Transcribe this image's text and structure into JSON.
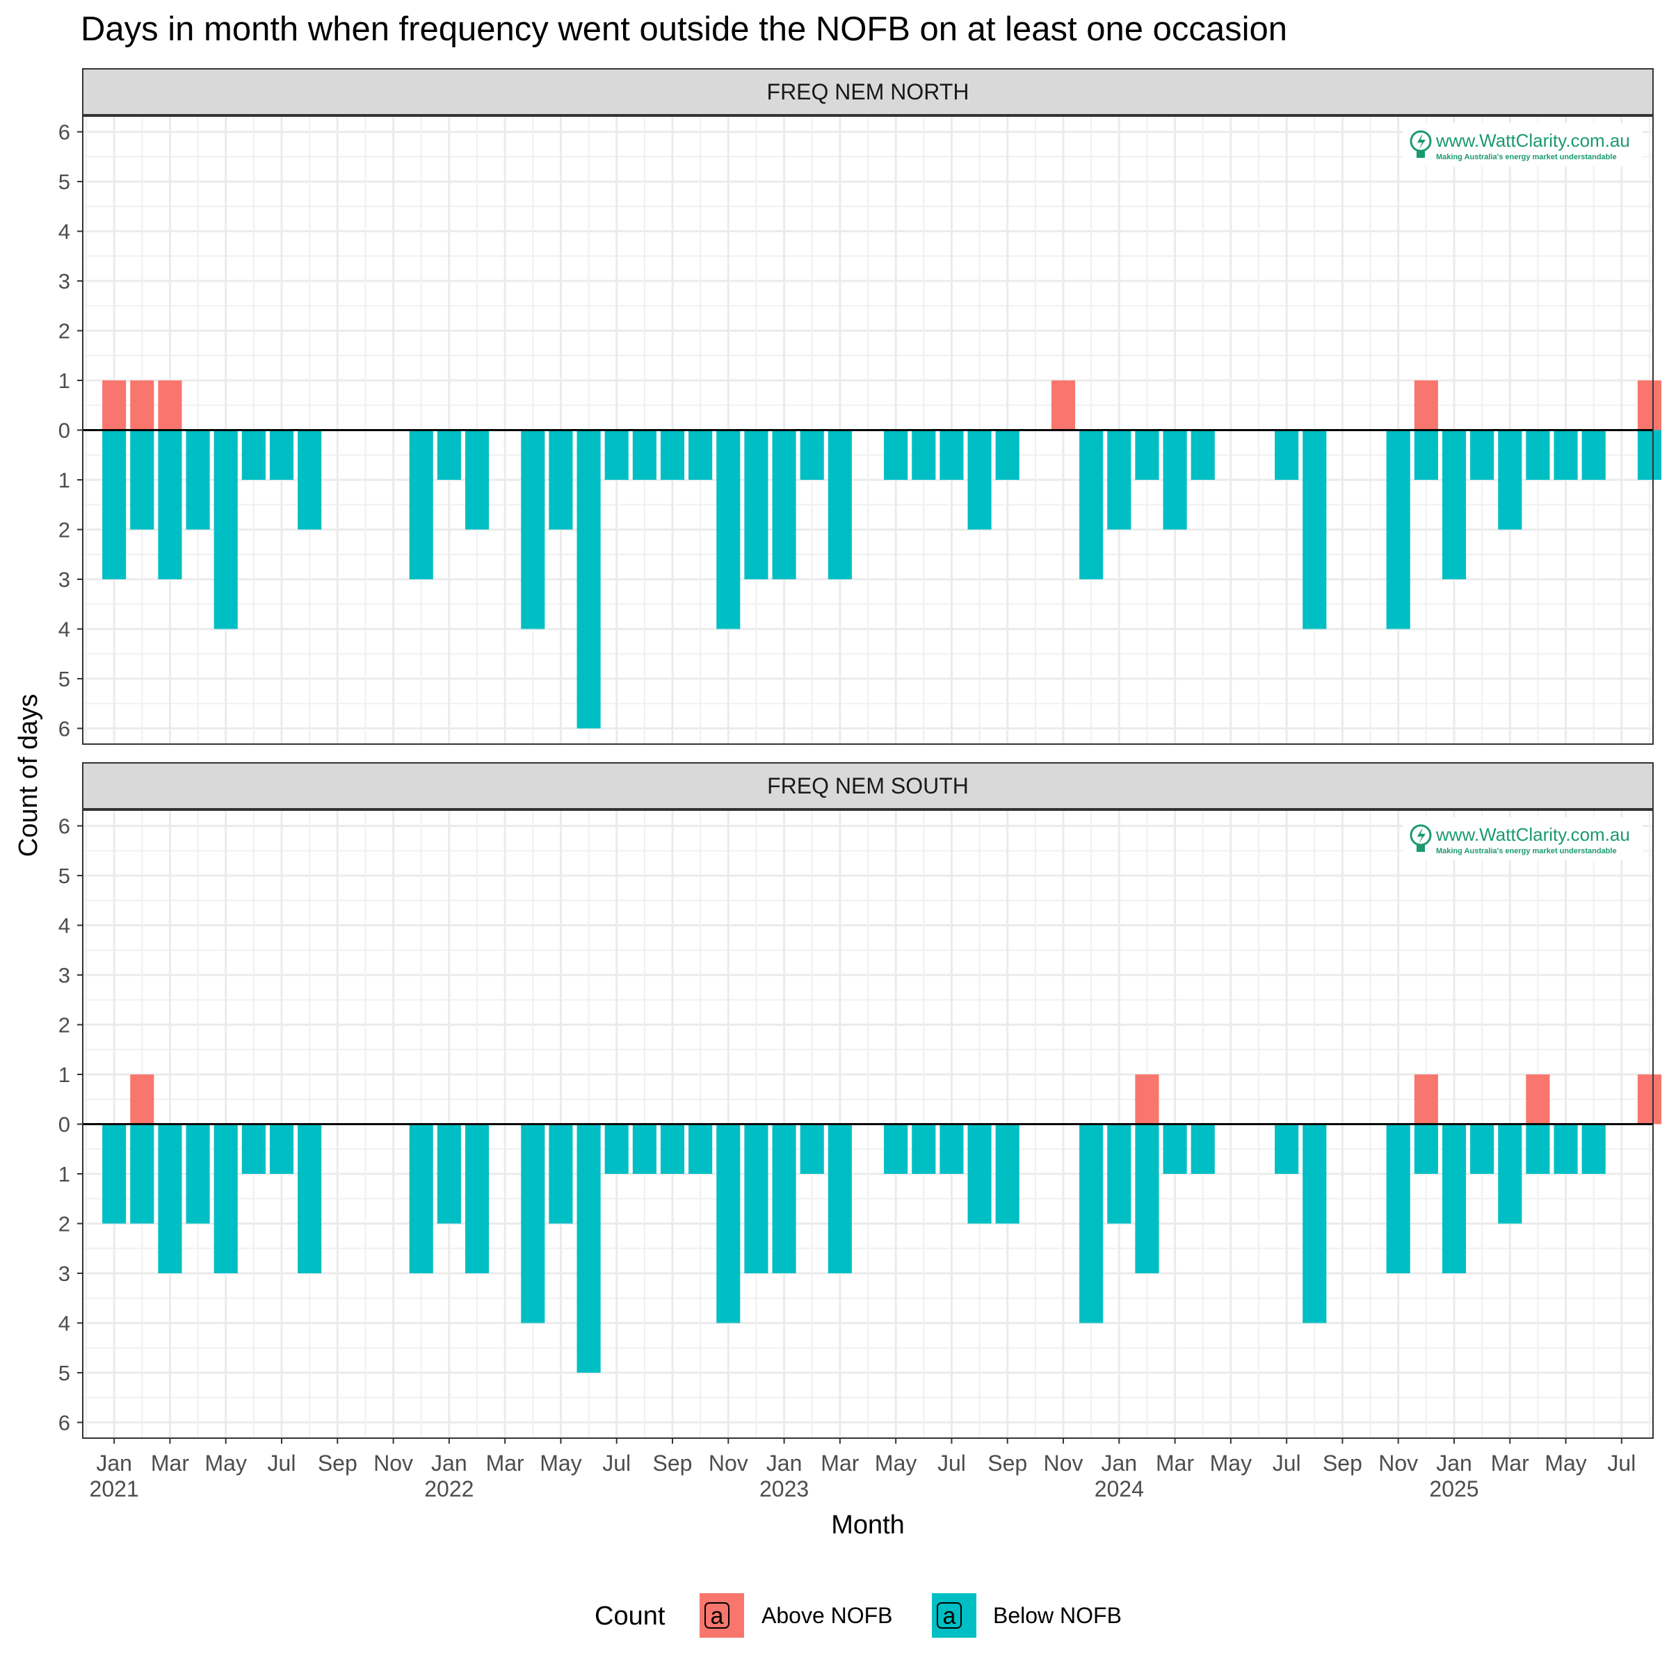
{
  "chart_data": {
    "type": "bar",
    "title": "Days in month when frequency went outside the NOFB on at least one occasion",
    "xlabel": "Month",
    "ylabel": "Count of days",
    "legend": {
      "title": "Count",
      "key_glyph": "a",
      "position": "bottom",
      "entries": [
        {
          "name": "Above NOFB",
          "color": "#F8766D"
        },
        {
          "name": "Below NOFB",
          "color": "#00BFC4"
        }
      ]
    },
    "ylim": [
      -6,
      6
    ],
    "y_tick_values": [
      -6,
      -5,
      -4,
      -3,
      -2,
      -1,
      0,
      1,
      2,
      3,
      4,
      5,
      6
    ],
    "y_tick_labels": [
      "6",
      "5",
      "4",
      "3",
      "2",
      "1",
      "0",
      "1",
      "2",
      "3",
      "4",
      "5",
      "6"
    ],
    "x_range": [
      "2020-12",
      "2025-08"
    ],
    "x_ticks": [
      {
        "month": "2021-01",
        "label": "Jan",
        "year": "2021"
      },
      {
        "month": "2021-03",
        "label": "Mar"
      },
      {
        "month": "2021-05",
        "label": "May"
      },
      {
        "month": "2021-07",
        "label": "Jul"
      },
      {
        "month": "2021-09",
        "label": "Sep"
      },
      {
        "month": "2021-11",
        "label": "Nov"
      },
      {
        "month": "2022-01",
        "label": "Jan",
        "year": "2022"
      },
      {
        "month": "2022-03",
        "label": "Mar"
      },
      {
        "month": "2022-05",
        "label": "May"
      },
      {
        "month": "2022-07",
        "label": "Jul"
      },
      {
        "month": "2022-09",
        "label": "Sep"
      },
      {
        "month": "2022-11",
        "label": "Nov"
      },
      {
        "month": "2023-01",
        "label": "Jan",
        "year": "2023"
      },
      {
        "month": "2023-03",
        "label": "Mar"
      },
      {
        "month": "2023-05",
        "label": "May"
      },
      {
        "month": "2023-07",
        "label": "Jul"
      },
      {
        "month": "2023-09",
        "label": "Sep"
      },
      {
        "month": "2023-11",
        "label": "Nov"
      },
      {
        "month": "2024-01",
        "label": "Jan",
        "year": "2024"
      },
      {
        "month": "2024-03",
        "label": "Mar"
      },
      {
        "month": "2024-05",
        "label": "May"
      },
      {
        "month": "2024-07",
        "label": "Jul"
      },
      {
        "month": "2024-09",
        "label": "Sep"
      },
      {
        "month": "2024-11",
        "label": "Nov"
      },
      {
        "month": "2025-01",
        "label": "Jan",
        "year": "2025"
      },
      {
        "month": "2025-03",
        "label": "Mar"
      },
      {
        "month": "2025-05",
        "label": "May"
      },
      {
        "month": "2025-07",
        "label": "Jul"
      }
    ],
    "grid": true,
    "watermark": {
      "text": "www.WattClarity.com.au",
      "tagline": "Making Australia's energy market understandable",
      "color": "#1a9a6c"
    },
    "panels": [
      {
        "name": "FREQ NEM NORTH",
        "series": [
          {
            "name": "Above NOFB",
            "color": "#F8766D",
            "points": [
              {
                "month": "2021-01",
                "value": 1
              },
              {
                "month": "2021-02",
                "value": 1
              },
              {
                "month": "2021-03",
                "value": 1
              },
              {
                "month": "2023-11",
                "value": 1
              },
              {
                "month": "2024-12",
                "value": 1
              },
              {
                "month": "2025-08",
                "value": 1
              }
            ]
          },
          {
            "name": "Below NOFB",
            "color": "#00BFC4",
            "points": [
              {
                "month": "2021-01",
                "value": 3
              },
              {
                "month": "2021-02",
                "value": 2
              },
              {
                "month": "2021-03",
                "value": 3
              },
              {
                "month": "2021-04",
                "value": 2
              },
              {
                "month": "2021-05",
                "value": 4
              },
              {
                "month": "2021-06",
                "value": 1
              },
              {
                "month": "2021-07",
                "value": 1
              },
              {
                "month": "2021-08",
                "value": 2
              },
              {
                "month": "2021-12",
                "value": 3
              },
              {
                "month": "2022-01",
                "value": 1
              },
              {
                "month": "2022-02",
                "value": 2
              },
              {
                "month": "2022-04",
                "value": 4
              },
              {
                "month": "2022-05",
                "value": 2
              },
              {
                "month": "2022-06",
                "value": 6
              },
              {
                "month": "2022-07",
                "value": 1
              },
              {
                "month": "2022-08",
                "value": 1
              },
              {
                "month": "2022-09",
                "value": 1
              },
              {
                "month": "2022-10",
                "value": 1
              },
              {
                "month": "2022-11",
                "value": 4
              },
              {
                "month": "2022-12",
                "value": 3
              },
              {
                "month": "2023-01",
                "value": 3
              },
              {
                "month": "2023-02",
                "value": 1
              },
              {
                "month": "2023-03",
                "value": 3
              },
              {
                "month": "2023-05",
                "value": 1
              },
              {
                "month": "2023-06",
                "value": 1
              },
              {
                "month": "2023-07",
                "value": 1
              },
              {
                "month": "2023-08",
                "value": 2
              },
              {
                "month": "2023-09",
                "value": 1
              },
              {
                "month": "2023-12",
                "value": 3
              },
              {
                "month": "2024-01",
                "value": 2
              },
              {
                "month": "2024-02",
                "value": 1
              },
              {
                "month": "2024-03",
                "value": 2
              },
              {
                "month": "2024-04",
                "value": 1
              },
              {
                "month": "2024-07",
                "value": 1
              },
              {
                "month": "2024-08",
                "value": 4
              },
              {
                "month": "2024-11",
                "value": 4
              },
              {
                "month": "2024-12",
                "value": 1
              },
              {
                "month": "2025-01",
                "value": 3
              },
              {
                "month": "2025-02",
                "value": 1
              },
              {
                "month": "2025-03",
                "value": 2
              },
              {
                "month": "2025-04",
                "value": 1
              },
              {
                "month": "2025-05",
                "value": 1
              },
              {
                "month": "2025-06",
                "value": 1
              },
              {
                "month": "2025-08",
                "value": 1
              }
            ]
          }
        ]
      },
      {
        "name": "FREQ NEM SOUTH",
        "series": [
          {
            "name": "Above NOFB",
            "color": "#F8766D",
            "points": [
              {
                "month": "2021-02",
                "value": 1
              },
              {
                "month": "2024-02",
                "value": 1
              },
              {
                "month": "2024-12",
                "value": 1
              },
              {
                "month": "2025-04",
                "value": 1
              },
              {
                "month": "2025-08",
                "value": 1
              }
            ]
          },
          {
            "name": "Below NOFB",
            "color": "#00BFC4",
            "points": [
              {
                "month": "2021-01",
                "value": 2
              },
              {
                "month": "2021-02",
                "value": 2
              },
              {
                "month": "2021-03",
                "value": 3
              },
              {
                "month": "2021-04",
                "value": 2
              },
              {
                "month": "2021-05",
                "value": 3
              },
              {
                "month": "2021-06",
                "value": 1
              },
              {
                "month": "2021-07",
                "value": 1
              },
              {
                "month": "2021-08",
                "value": 3
              },
              {
                "month": "2021-12",
                "value": 3
              },
              {
                "month": "2022-01",
                "value": 2
              },
              {
                "month": "2022-02",
                "value": 3
              },
              {
                "month": "2022-04",
                "value": 4
              },
              {
                "month": "2022-05",
                "value": 2
              },
              {
                "month": "2022-06",
                "value": 5
              },
              {
                "month": "2022-07",
                "value": 1
              },
              {
                "month": "2022-08",
                "value": 1
              },
              {
                "month": "2022-09",
                "value": 1
              },
              {
                "month": "2022-10",
                "value": 1
              },
              {
                "month": "2022-11",
                "value": 4
              },
              {
                "month": "2022-12",
                "value": 3
              },
              {
                "month": "2023-01",
                "value": 3
              },
              {
                "month": "2023-02",
                "value": 1
              },
              {
                "month": "2023-03",
                "value": 3
              },
              {
                "month": "2023-05",
                "value": 1
              },
              {
                "month": "2023-06",
                "value": 1
              },
              {
                "month": "2023-07",
                "value": 1
              },
              {
                "month": "2023-08",
                "value": 2
              },
              {
                "month": "2023-09",
                "value": 2
              },
              {
                "month": "2023-12",
                "value": 4
              },
              {
                "month": "2024-01",
                "value": 2
              },
              {
                "month": "2024-02",
                "value": 3
              },
              {
                "month": "2024-03",
                "value": 1
              },
              {
                "month": "2024-04",
                "value": 1
              },
              {
                "month": "2024-07",
                "value": 1
              },
              {
                "month": "2024-08",
                "value": 4
              },
              {
                "month": "2024-11",
                "value": 3
              },
              {
                "month": "2024-12",
                "value": 1
              },
              {
                "month": "2025-01",
                "value": 3
              },
              {
                "month": "2025-02",
                "value": 1
              },
              {
                "month": "2025-03",
                "value": 2
              },
              {
                "month": "2025-04",
                "value": 1
              },
              {
                "month": "2025-05",
                "value": 1
              },
              {
                "month": "2025-06",
                "value": 1
              }
            ]
          }
        ]
      }
    ]
  }
}
